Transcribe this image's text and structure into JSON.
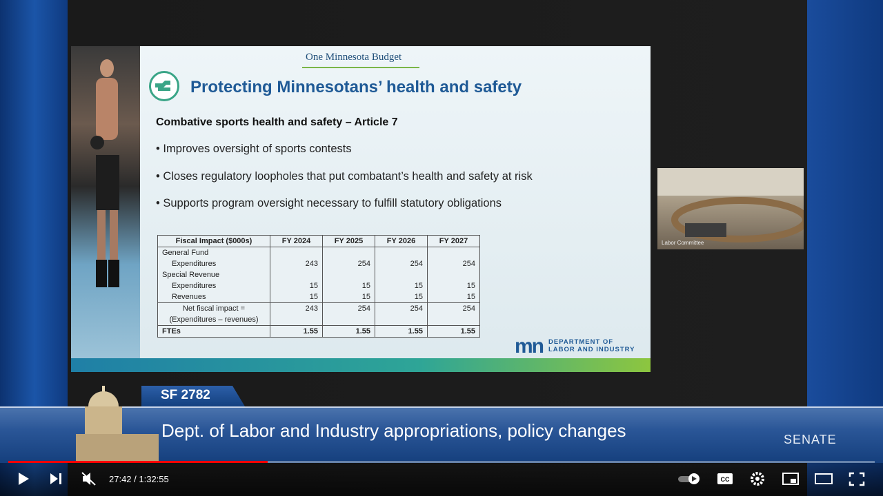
{
  "slide": {
    "header": "One Minnesota Budget",
    "title": "Protecting Minnesotans’ health and safety",
    "subtitle": "Combative sports health and safety – Article 7",
    "bullets": [
      "• Improves oversight of sports contests",
      "• Closes regulatory loopholes that put combatant’s health and safety at risk",
      "•  Supports program oversight necessary to fulfill statutory obligations"
    ],
    "table": {
      "header": [
        "Fiscal Impact ($000s)",
        "FY 2024",
        "FY 2025",
        "FY 2026",
        "FY 2027"
      ],
      "rows": [
        {
          "label": "General Fund"
        },
        {
          "label": "Expenditures",
          "values": [
            243,
            254,
            254,
            254
          ]
        },
        {
          "label": "Special Revenue"
        },
        {
          "label": "Expenditures",
          "values": [
            15,
            15,
            15,
            15
          ]
        },
        {
          "label": "Revenues",
          "values": [
            15,
            15,
            15,
            15
          ]
        },
        {
          "label": "Net fiscal impact = (Expenditures – revenues)",
          "values": [
            243,
            254,
            254,
            254
          ]
        },
        {
          "label": "FTEs",
          "values": [
            1.55,
            1.55,
            1.55,
            1.55
          ]
        }
      ]
    },
    "logo_mark": "mn",
    "logo_text": [
      "DEPARTMENT OF",
      "LABOR AND INDUSTRY"
    ]
  },
  "inset": {
    "label": "Labor Committee"
  },
  "lower_third": {
    "bill": "SF 2782",
    "headline": "Dept. of Labor and Industry appropriations, policy changes",
    "network": "SENATE"
  },
  "player": {
    "time": "27:42 / 1:32:55"
  }
}
